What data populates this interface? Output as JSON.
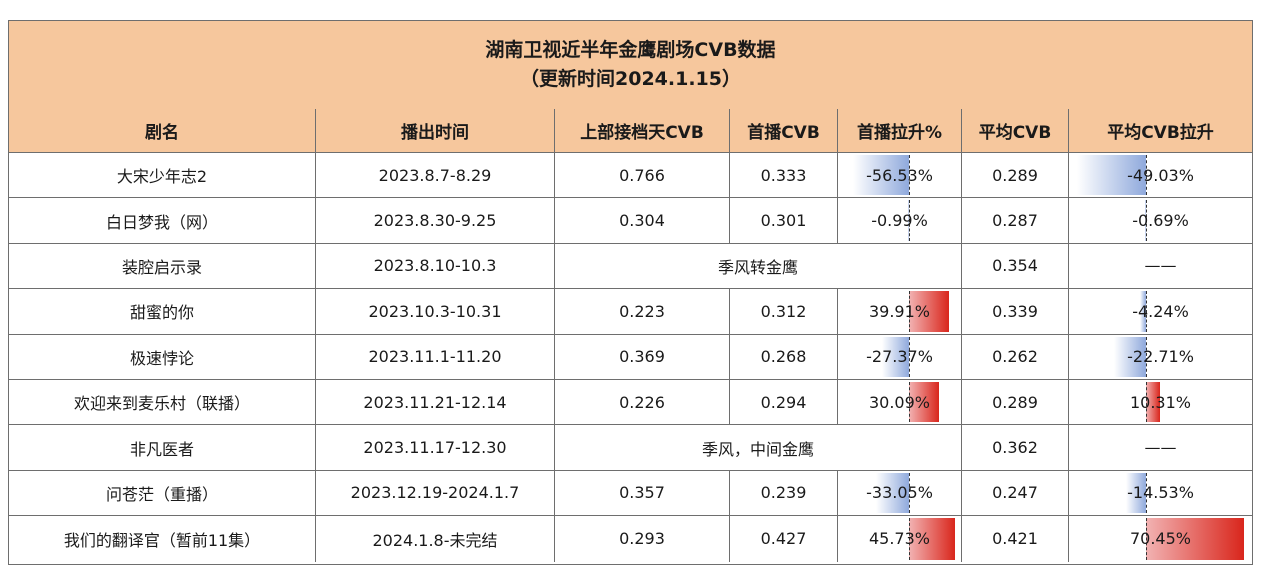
{
  "title_line1": "湖南卫视近半年金鹰剧场CVB数据",
  "title_line2": "（更新时间2024.1.15）",
  "headers": [
    "剧名",
    "播出时间",
    "上部接档天CVB",
    "首播CVB",
    "首播拉升%",
    "平均CVB",
    "平均CVB拉升"
  ],
  "colors": {
    "header_bg": "#f6c79d",
    "pos_bar": "#d9261c",
    "neg_bar": "#8fa9dc",
    "border": "#6e6e6e"
  },
  "rows": [
    {
      "name": "大宋少年志2",
      "air": "2023.8.7-8.29",
      "prev": "0.766",
      "first": "0.333",
      "rise": "-56.53%",
      "rise_v": -56.53,
      "avg": "0.289",
      "avg_rise": "-49.03%",
      "avg_rise_v": -49.03
    },
    {
      "name": "白日梦我（网）",
      "air": "2023.8.30-9.25",
      "prev": "0.304",
      "first": "0.301",
      "rise": "-0.99%",
      "rise_v": -0.99,
      "avg": "0.287",
      "avg_rise": "-0.69%",
      "avg_rise_v": -0.69
    },
    {
      "name": "装腔启示录",
      "air": "2023.8.10-10.3",
      "merged": "季风转金鹰",
      "avg": "0.354",
      "avg_rise": "——"
    },
    {
      "name": "甜蜜的你",
      "air": "2023.10.3-10.31",
      "prev": "0.223",
      "first": "0.312",
      "rise": "39.91%",
      "rise_v": 39.91,
      "avg": "0.339",
      "avg_rise": "-4.24%",
      "avg_rise_v": -4.24
    },
    {
      "name": "极速悖论",
      "air": "2023.11.1-11.20",
      "prev": "0.369",
      "first": "0.268",
      "rise": "-27.37%",
      "rise_v": -27.37,
      "avg": "0.262",
      "avg_rise": "-22.71%",
      "avg_rise_v": -22.71
    },
    {
      "name": "欢迎来到麦乐村（联播）",
      "air": "2023.11.21-12.14",
      "prev": "0.226",
      "first": "0.294",
      "rise": "30.09%",
      "rise_v": 30.09,
      "avg": "0.289",
      "avg_rise": "10.31%",
      "avg_rise_v": 10.31
    },
    {
      "name": "非凡医者",
      "air": "2023.11.17-12.30",
      "merged": "季风，中间金鹰",
      "avg": "0.362",
      "avg_rise": "——"
    },
    {
      "name": "问苍茫（重播）",
      "air": "2023.12.19-2024.1.7",
      "prev": "0.357",
      "first": "0.239",
      "rise": "-33.05%",
      "rise_v": -33.05,
      "avg": "0.247",
      "avg_rise": "-14.53%",
      "avg_rise_v": -14.53
    },
    {
      "name": "我们的翻译官（暂前11集）",
      "air": "2024.1.8-未完结",
      "prev": "0.293",
      "first": "0.427",
      "rise": "45.73%",
      "rise_v": 45.73,
      "avg": "0.421",
      "avg_rise": "70.45%",
      "avg_rise_v": 70.45
    }
  ]
}
